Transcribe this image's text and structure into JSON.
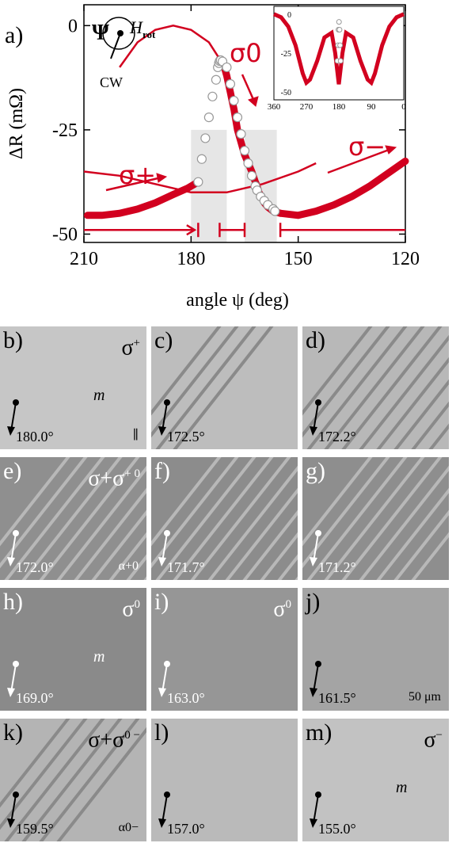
{
  "chart_data": {
    "type": "line",
    "panel_label": "a)",
    "xlabel": "angle ψ (deg)",
    "ylabel": "ΔR (mΩ)",
    "xlim": [
      210,
      120
    ],
    "ylim": [
      -52,
      5
    ],
    "xticks": [
      "210",
      "180",
      "150",
      "120"
    ],
    "yticks": [
      "0",
      "-25",
      "-50"
    ],
    "ytick_values": [
      0,
      -25,
      -50
    ],
    "xtick_values": [
      210,
      180,
      150,
      120
    ],
    "series": [
      {
        "name": "σ+",
        "x": [
          209,
          205,
          200,
          195,
          190,
          185,
          181,
          178
        ],
        "y": [
          -45.5,
          -45.5,
          -45.0,
          -44.0,
          -42.5,
          -40.5,
          -39.0,
          -37.5
        ]
      },
      {
        "name": "σ0",
        "x": [
          172,
          171,
          170.5,
          170,
          169.5,
          169,
          168.5,
          168,
          167,
          166,
          165,
          164,
          163,
          162,
          161.5,
          161,
          160,
          159.5,
          158.5,
          157,
          155
        ],
        "y": [
          -8,
          -9,
          -10.5,
          -12,
          -14,
          -16,
          -18,
          -20,
          -25,
          -28,
          -31,
          -33,
          -35,
          -37.5,
          -38.5,
          -40,
          -41.5,
          -42.5,
          -43.5,
          -44.5,
          -45
        ]
      },
      {
        "name": "σ−",
        "x": [
          155,
          150,
          145,
          140,
          135,
          130,
          125,
          120
        ],
        "y": [
          -45,
          -45.5,
          -44.5,
          -43.0,
          -41.0,
          -38.5,
          -35.5,
          -32.5
        ]
      }
    ],
    "open_markers": {
      "x": [
        178,
        177,
        176,
        175,
        174,
        173,
        172.5,
        172.2,
        172,
        171.7,
        171.2,
        170,
        169,
        168,
        167,
        166,
        165,
        164,
        163,
        162,
        161.5,
        160.5,
        159.5,
        158.5,
        157,
        156.5
      ],
      "y": [
        -37.5,
        -32,
        -27,
        -22,
        -17,
        -13,
        -10,
        -9,
        -8.5,
        -8.3,
        -8.6,
        -10,
        -14,
        -18,
        -22,
        -26,
        -30,
        -33,
        -36,
        -38.5,
        -39.5,
        -41,
        -42,
        -43,
        -44,
        -44.5
      ]
    },
    "reference_curves": [
      {
        "x": [
          200,
          195,
          190,
          185,
          180,
          175,
          172
        ],
        "y": [
          -10,
          -4,
          -1,
          0,
          -1,
          -4,
          -8
        ]
      },
      {
        "x": [
          210,
          200,
          190,
          180,
          170,
          160,
          150,
          145
        ],
        "y": [
          -35,
          -36,
          -38,
          -40,
          -40,
          -38,
          -35,
          -33
        ]
      }
    ],
    "shaded_ranges": [
      [
        180,
        170
      ],
      [
        165,
        156
      ]
    ],
    "state_labels": [
      "σ0",
      "σ+",
      "σ−"
    ],
    "state_marker_label": "Ψ",
    "h_label": "H",
    "h_subscript": "rot",
    "rotation_label": "CW",
    "inset": {
      "xticks": [
        "360",
        "270",
        "180",
        "90",
        "0"
      ],
      "xtick_values": [
        360,
        270,
        180,
        90,
        0
      ],
      "yticks": [
        "0",
        "-25",
        "-50"
      ],
      "ytick_values": [
        0,
        -25,
        -50
      ],
      "xlim": [
        360,
        0
      ],
      "ylim": [
        -55,
        5
      ],
      "curve": {
        "x": [
          360,
          340,
          320,
          300,
          280,
          270,
          260,
          240,
          220,
          200,
          190,
          180,
          170,
          160,
          140,
          120,
          100,
          90,
          80,
          60,
          40,
          20,
          0
        ],
        "y": [
          0,
          -2,
          -8,
          -20,
          -38,
          -44,
          -42,
          -30,
          -15,
          -12,
          -25,
          -45,
          -25,
          -12,
          -15,
          -30,
          -42,
          -44,
          -38,
          -20,
          -8,
          -2,
          0
        ]
      }
    }
  },
  "panels": [
    {
      "label": "b)",
      "angle": "180.0°",
      "state": "σ",
      "state_sup": "+",
      "bg": "#c6c6c6",
      "stripes": 0,
      "light": false,
      "extra": "∥",
      "moment": "m"
    },
    {
      "label": "c)",
      "angle": "172.5°",
      "state": "",
      "state_sup": "",
      "bg": "#bdbdbd",
      "stripes": 4,
      "light": false,
      "extra": "",
      "moment": ""
    },
    {
      "label": "d)",
      "angle": "172.2°",
      "state": "",
      "state_sup": "",
      "bg": "#b8b8b8",
      "stripes": 10,
      "light": false,
      "extra": "",
      "moment": ""
    },
    {
      "label": "e)",
      "angle": "172.0°",
      "state": "σ+σ",
      "state_sup": "+  0",
      "bg": "#8f8f8f",
      "stripes": 14,
      "light": true,
      "extra": "α+0",
      "moment": ""
    },
    {
      "label": "f)",
      "angle": "171.7°",
      "state": "",
      "state_sup": "",
      "bg": "#8c8c8c",
      "stripes": 14,
      "light": true,
      "extra": "",
      "moment": ""
    },
    {
      "label": "g)",
      "angle": "171.2°",
      "state": "",
      "state_sup": "",
      "bg": "#8e8e8e",
      "stripes": 9,
      "light": true,
      "extra": "",
      "moment": ""
    },
    {
      "label": "h)",
      "angle": "169.0°",
      "state": "σ",
      "state_sup": "0",
      "bg": "#8a8a8a",
      "stripes": 0,
      "light": true,
      "extra": "",
      "moment": "m"
    },
    {
      "label": "i)",
      "angle": "163.0°",
      "state": "σ",
      "state_sup": "0",
      "bg": "#969696",
      "stripes": 0,
      "light": true,
      "extra": "",
      "moment": ""
    },
    {
      "label": "j)",
      "angle": "161.5°",
      "state": "",
      "state_sup": "",
      "bg": "#a4a4a4",
      "stripes": 0,
      "light": false,
      "extra": "50 μm",
      "moment": ""
    },
    {
      "label": "k)",
      "angle": "159.5°",
      "state": "σ+σ",
      "state_sup": "0  −",
      "bg": "#b4b4b4",
      "stripes": 6,
      "light": false,
      "extra": "α0−",
      "moment": ""
    },
    {
      "label": "l)",
      "angle": "157.0°",
      "state": "",
      "state_sup": "",
      "bg": "#bababa",
      "stripes": 0,
      "light": false,
      "extra": "",
      "moment": ""
    },
    {
      "label": "m)",
      "angle": "155.0°",
      "state": "σ",
      "state_sup": "−",
      "bg": "#c2c2c2",
      "stripes": 0,
      "light": false,
      "extra": "",
      "moment": "m"
    }
  ],
  "colors": {
    "accent": "#d2001f",
    "marker_fill": "#ffffff",
    "marker_stroke": "#999999",
    "shade": "#e6e6e6"
  }
}
